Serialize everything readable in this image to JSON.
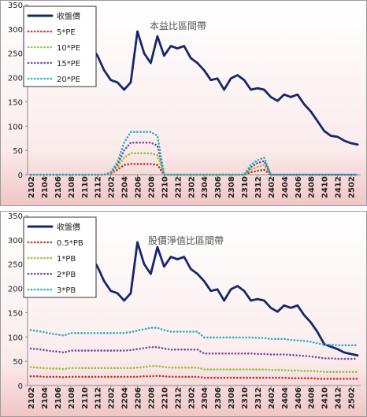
{
  "charts": [
    {
      "chart_title": "本益比區間帶",
      "legend": [
        "收盤價",
        "5*PE",
        "10*PE",
        "15*PE",
        "20*PE"
      ]
    },
    {
      "chart_title": "股價淨值比區間帶",
      "legend": [
        "收盤價",
        "0.5*PB",
        "1*PB",
        "2*PB",
        "3*PB"
      ]
    }
  ],
  "chart_data": [
    {
      "type": "line",
      "title": "本益比區間帶",
      "ylim": [
        0,
        350
      ],
      "yticks": [
        "0",
        "50",
        "100",
        "150",
        "200",
        "250",
        "300",
        "350"
      ],
      "grid": false,
      "legend_position": "top-left",
      "x": [
        "2102",
        "2103",
        "2104",
        "2105",
        "2106",
        "2107",
        "2108",
        "2109",
        "2110",
        "2111",
        "2112",
        "2201",
        "2202",
        "2203",
        "2204",
        "2205",
        "2206",
        "2207",
        "2208",
        "2209",
        "2210",
        "2211",
        "2212",
        "2301",
        "2302",
        "2303",
        "2304",
        "2305",
        "2306",
        "2307",
        "2308",
        "2309",
        "2310",
        "2311",
        "2312",
        "2401",
        "2402",
        "2403",
        "2404",
        "2405",
        "2406",
        "2407",
        "2408",
        "2409",
        "2410",
        "2411",
        "2412",
        "2501",
        "2502",
        "2503"
      ],
      "xtick_labels": [
        "2102",
        "2104",
        "2106",
        "2108",
        "2110",
        "2112",
        "2202",
        "2204",
        "2206",
        "2208",
        "2210",
        "2212",
        "2302",
        "2304",
        "2306",
        "2308",
        "2310",
        "2312",
        "2402",
        "2404",
        "2406",
        "2408",
        "2410",
        "2412",
        "2502"
      ],
      "series": [
        {
          "name": "收盤價",
          "color": "#14286e",
          "dash": "solid",
          "values": [
            260,
            240,
            225,
            205,
            190,
            185,
            215,
            235,
            250,
            265,
            245,
            215,
            195,
            190,
            175,
            190,
            295,
            250,
            230,
            285,
            245,
            265,
            260,
            265,
            240,
            230,
            215,
            195,
            198,
            175,
            198,
            205,
            195,
            175,
            178,
            175,
            160,
            152,
            165,
            160,
            165,
            145,
            130,
            110,
            90,
            80,
            78,
            70,
            65,
            62
          ]
        },
        {
          "name": "5*PE",
          "color": "#c0392b",
          "dash": "dot",
          "values": [
            0,
            0,
            0,
            0,
            0,
            0,
            0,
            0,
            0,
            0,
            0,
            0,
            2,
            10,
            20,
            22,
            22,
            22,
            22,
            20,
            0,
            0,
            0,
            0,
            0,
            0,
            0,
            0,
            0,
            0,
            0,
            0,
            0,
            5,
            8,
            10,
            0,
            0,
            0,
            0,
            0,
            0,
            0,
            0,
            0,
            0,
            0,
            0,
            0,
            0
          ]
        },
        {
          "name": "10*PE",
          "color": "#8dc63f",
          "dash": "dot",
          "values": [
            0,
            0,
            0,
            0,
            0,
            0,
            0,
            0,
            0,
            0,
            0,
            0,
            3,
            15,
            35,
            44,
            44,
            44,
            44,
            40,
            0,
            0,
            0,
            0,
            0,
            0,
            0,
            0,
            0,
            0,
            0,
            0,
            0,
            10,
            16,
            20,
            0,
            0,
            0,
            0,
            0,
            0,
            0,
            0,
            0,
            0,
            0,
            0,
            0,
            0
          ]
        },
        {
          "name": "15*PE",
          "color": "#7b4fa0",
          "dash": "dot",
          "values": [
            0,
            0,
            0,
            0,
            0,
            0,
            0,
            0,
            0,
            0,
            0,
            0,
            4,
            20,
            50,
            66,
            66,
            66,
            66,
            60,
            0,
            0,
            0,
            0,
            0,
            0,
            0,
            0,
            0,
            0,
            0,
            0,
            0,
            15,
            24,
            28,
            0,
            0,
            0,
            0,
            0,
            0,
            0,
            0,
            0,
            0,
            0,
            0,
            0,
            0
          ]
        },
        {
          "name": "20*PE",
          "color": "#2ab0c5",
          "dash": "dot",
          "values": [
            0,
            0,
            0,
            0,
            0,
            0,
            0,
            0,
            0,
            0,
            0,
            0,
            5,
            26,
            66,
            88,
            88,
            88,
            88,
            80,
            0,
            0,
            0,
            0,
            0,
            0,
            0,
            0,
            0,
            0,
            0,
            0,
            0,
            20,
            30,
            35,
            0,
            0,
            0,
            0,
            0,
            0,
            0,
            0,
            0,
            0,
            0,
            0,
            0,
            0
          ]
        }
      ]
    },
    {
      "type": "line",
      "title": "股價淨值比區間帶",
      "ylim": [
        0,
        350
      ],
      "yticks": [
        "0",
        "50",
        "100",
        "150",
        "200",
        "250",
        "300",
        "350"
      ],
      "grid": false,
      "legend_position": "top-left",
      "x": [
        "2102",
        "2103",
        "2104",
        "2105",
        "2106",
        "2107",
        "2108",
        "2109",
        "2110",
        "2111",
        "2112",
        "2201",
        "2202",
        "2203",
        "2204",
        "2205",
        "2206",
        "2207",
        "2208",
        "2209",
        "2210",
        "2211",
        "2212",
        "2301",
        "2302",
        "2303",
        "2304",
        "2305",
        "2306",
        "2307",
        "2308",
        "2309",
        "2310",
        "2311",
        "2312",
        "2401",
        "2402",
        "2403",
        "2404",
        "2405",
        "2406",
        "2407",
        "2408",
        "2409",
        "2410",
        "2411",
        "2412",
        "2501",
        "2502",
        "2503"
      ],
      "xtick_labels": [
        "2102",
        "2104",
        "2106",
        "2108",
        "2110",
        "2112",
        "2202",
        "2204",
        "2206",
        "2208",
        "2210",
        "2212",
        "2302",
        "2304",
        "2306",
        "2308",
        "2310",
        "2312",
        "2402",
        "2404",
        "2406",
        "2408",
        "2410",
        "2412",
        "2502"
      ],
      "series": [
        {
          "name": "收盤價",
          "color": "#14286e",
          "dash": "solid",
          "values": [
            260,
            240,
            210,
            200,
            193,
            185,
            215,
            235,
            250,
            265,
            245,
            215,
            195,
            190,
            175,
            190,
            295,
            250,
            230,
            285,
            245,
            265,
            260,
            265,
            240,
            230,
            215,
            195,
            198,
            175,
            198,
            205,
            195,
            175,
            178,
            175,
            160,
            152,
            165,
            160,
            165,
            145,
            130,
            110,
            85,
            80,
            75,
            68,
            65,
            62
          ]
        },
        {
          "name": "0.5*PB",
          "color": "#c0392b",
          "dash": "dot",
          "values": [
            19,
            19,
            18,
            18,
            18,
            17,
            18,
            18,
            18,
            18,
            18,
            18,
            18,
            18,
            18,
            18,
            18,
            19,
            19,
            20,
            19,
            18,
            18,
            18,
            18,
            18,
            16,
            16,
            16,
            16,
            16,
            16,
            16,
            16,
            16,
            16,
            16,
            16,
            16,
            15,
            15,
            15,
            15,
            14,
            14,
            14,
            14,
            14,
            14,
            14
          ]
        },
        {
          "name": "1*PB",
          "color": "#8dc63f",
          "dash": "dot",
          "values": [
            38,
            37,
            36,
            35,
            35,
            34,
            36,
            36,
            36,
            36,
            36,
            36,
            36,
            36,
            36,
            36,
            37,
            38,
            40,
            40,
            38,
            37,
            37,
            37,
            37,
            37,
            33,
            33,
            33,
            33,
            33,
            33,
            33,
            33,
            33,
            33,
            32,
            32,
            32,
            31,
            31,
            30,
            30,
            29,
            28,
            28,
            28,
            28,
            28,
            28
          ]
        },
        {
          "name": "2*PB",
          "color": "#7b4fa0",
          "dash": "dot",
          "values": [
            76,
            75,
            73,
            71,
            70,
            68,
            72,
            72,
            72,
            72,
            72,
            72,
            72,
            72,
            72,
            73,
            75,
            77,
            79,
            79,
            76,
            74,
            74,
            74,
            74,
            74,
            66,
            66,
            66,
            66,
            66,
            66,
            66,
            66,
            65,
            65,
            64,
            64,
            64,
            63,
            62,
            61,
            60,
            58,
            56,
            56,
            55,
            55,
            55,
            55
          ]
        },
        {
          "name": "3*PB",
          "color": "#2ab0c5",
          "dash": "dot",
          "values": [
            114,
            112,
            110,
            107,
            105,
            103,
            108,
            108,
            108,
            108,
            108,
            108,
            108,
            108,
            108,
            110,
            113,
            116,
            119,
            119,
            114,
            111,
            111,
            111,
            111,
            111,
            99,
            99,
            99,
            99,
            99,
            99,
            99,
            99,
            98,
            98,
            96,
            96,
            96,
            94,
            93,
            92,
            90,
            87,
            84,
            84,
            83,
            83,
            83,
            83
          ]
        }
      ]
    }
  ]
}
